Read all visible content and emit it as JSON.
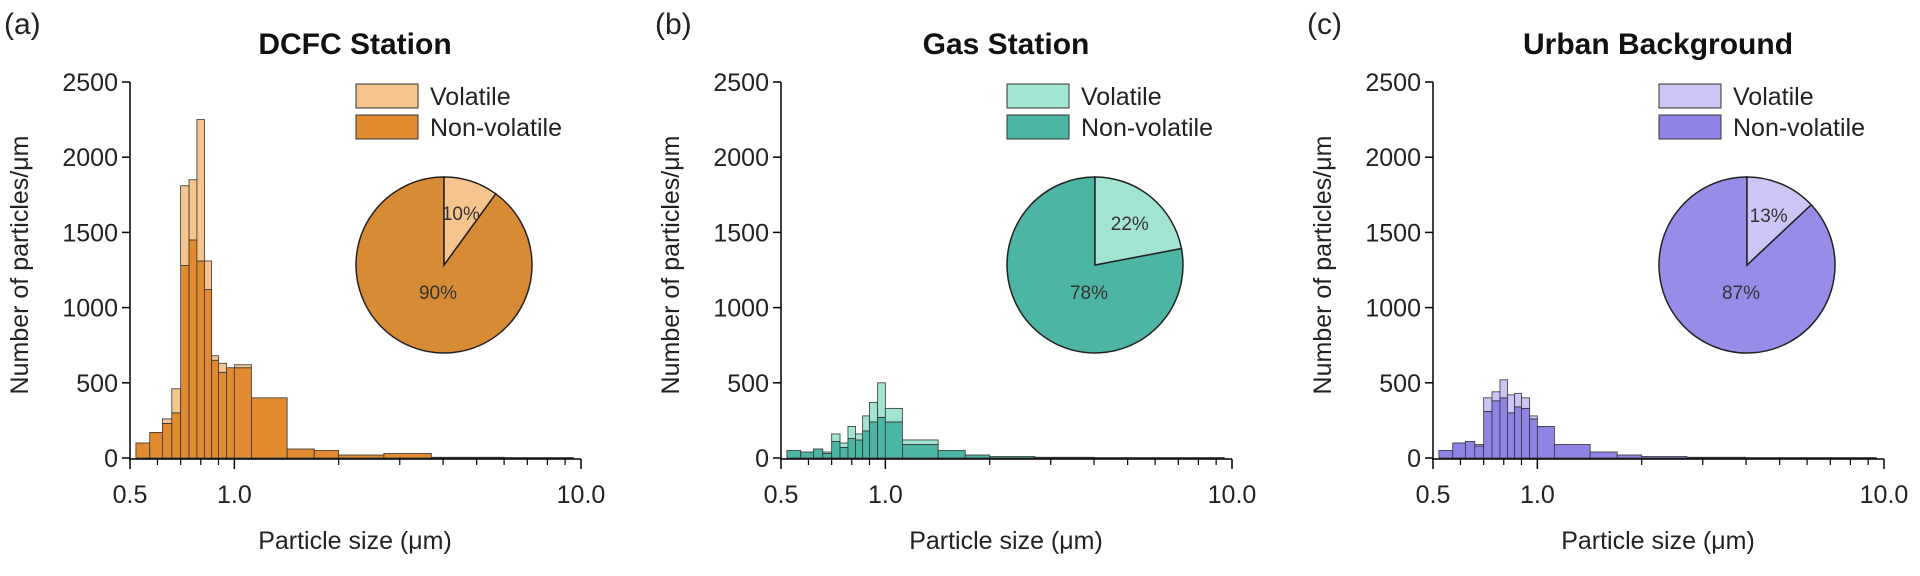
{
  "chart_data": [
    {
      "type": "bar",
      "panel_label": "(a)",
      "title": "DCFC Station",
      "xlabel": "Particle size (μm)",
      "ylabel": "Number of particles/μm",
      "x_scale": "log",
      "xlim": [
        0.5,
        10.0
      ],
      "ylim": [
        0,
        2500
      ],
      "x_ticks": [
        "0.5",
        "1.0",
        "10.0"
      ],
      "y_ticks": [
        "0",
        "500",
        "1000",
        "1500",
        "2000",
        "2500"
      ],
      "legend": {
        "placement": "top-right",
        "entries": [
          "Volatile",
          "Non-volatile"
        ]
      },
      "colors": {
        "volatile": "#F6C48F",
        "non_volatile": "#E28A30",
        "pie_non_volatile": "#D68B34"
      },
      "bins": [
        {
          "x0": 0.52,
          "x1": 0.57,
          "volatile": 0,
          "non_volatile": 100
        },
        {
          "x0": 0.57,
          "x1": 0.62,
          "volatile": 0,
          "non_volatile": 170
        },
        {
          "x0": 0.62,
          "x1": 0.66,
          "volatile": 30,
          "non_volatile": 230
        },
        {
          "x0": 0.66,
          "x1": 0.7,
          "volatile": 160,
          "non_volatile": 300
        },
        {
          "x0": 0.7,
          "x1": 0.74,
          "volatile": 530,
          "non_volatile": 1280
        },
        {
          "x0": 0.74,
          "x1": 0.78,
          "volatile": 400,
          "non_volatile": 1450
        },
        {
          "x0": 0.78,
          "x1": 0.82,
          "volatile": 940,
          "non_volatile": 1310
        },
        {
          "x0": 0.82,
          "x1": 0.86,
          "volatile": 190,
          "non_volatile": 1120
        },
        {
          "x0": 0.86,
          "x1": 0.9,
          "volatile": 30,
          "non_volatile": 650
        },
        {
          "x0": 0.9,
          "x1": 0.95,
          "volatile": 60,
          "non_volatile": 570
        },
        {
          "x0": 0.95,
          "x1": 1.0,
          "volatile": 0,
          "non_volatile": 600
        },
        {
          "x0": 1.0,
          "x1": 1.12,
          "volatile": 20,
          "non_volatile": 600
        },
        {
          "x0": 1.12,
          "x1": 1.42,
          "volatile": 0,
          "non_volatile": 400
        },
        {
          "x0": 1.42,
          "x1": 1.7,
          "volatile": 0,
          "non_volatile": 60
        },
        {
          "x0": 1.7,
          "x1": 2.0,
          "volatile": 0,
          "non_volatile": 50
        },
        {
          "x0": 2.0,
          "x1": 2.7,
          "volatile": 0,
          "non_volatile": 20
        },
        {
          "x0": 2.7,
          "x1": 3.7,
          "volatile": 0,
          "non_volatile": 30
        },
        {
          "x0": 3.7,
          "x1": 6.0,
          "volatile": 0,
          "non_volatile": 5
        },
        {
          "x0": 6.0,
          "x1": 9.5,
          "volatile": 0,
          "non_volatile": 3
        }
      ],
      "pie": {
        "volatile_pct": 10,
        "non_volatile_pct": 90,
        "volatile_label": "10%",
        "non_volatile_label": "90%"
      }
    },
    {
      "type": "bar",
      "panel_label": "(b)",
      "title": "Gas Station",
      "xlabel": "Particle size (μm)",
      "ylabel": "Number of particles/μm",
      "x_scale": "log",
      "xlim": [
        0.5,
        10.0
      ],
      "ylim": [
        0,
        2500
      ],
      "x_ticks": [
        "0.5",
        "1.0",
        "10.0"
      ],
      "y_ticks": [
        "0",
        "500",
        "1000",
        "1500",
        "2000",
        "2500"
      ],
      "legend": {
        "placement": "top-right",
        "entries": [
          "Volatile",
          "Non-volatile"
        ]
      },
      "colors": {
        "volatile": "#A3E3D2",
        "non_volatile": "#4DB5A3",
        "pie_non_volatile": "#4DB5A3"
      },
      "bins": [
        {
          "x0": 0.52,
          "x1": 0.57,
          "volatile": 0,
          "non_volatile": 50
        },
        {
          "x0": 0.57,
          "x1": 0.62,
          "volatile": 0,
          "non_volatile": 40
        },
        {
          "x0": 0.62,
          "x1": 0.66,
          "volatile": 0,
          "non_volatile": 60
        },
        {
          "x0": 0.66,
          "x1": 0.7,
          "volatile": 10,
          "non_volatile": 30
        },
        {
          "x0": 0.7,
          "x1": 0.74,
          "volatile": 50,
          "non_volatile": 110
        },
        {
          "x0": 0.74,
          "x1": 0.78,
          "volatile": 30,
          "non_volatile": 70
        },
        {
          "x0": 0.78,
          "x1": 0.82,
          "volatile": 80,
          "non_volatile": 130
        },
        {
          "x0": 0.82,
          "x1": 0.86,
          "volatile": 40,
          "non_volatile": 120
        },
        {
          "x0": 0.86,
          "x1": 0.9,
          "volatile": 100,
          "non_volatile": 180
        },
        {
          "x0": 0.9,
          "x1": 0.95,
          "volatile": 130,
          "non_volatile": 240
        },
        {
          "x0": 0.95,
          "x1": 1.0,
          "volatile": 230,
          "non_volatile": 270
        },
        {
          "x0": 1.0,
          "x1": 1.12,
          "volatile": 90,
          "non_volatile": 240
        },
        {
          "x0": 1.12,
          "x1": 1.42,
          "volatile": 30,
          "non_volatile": 90
        },
        {
          "x0": 1.42,
          "x1": 1.7,
          "volatile": 0,
          "non_volatile": 50
        },
        {
          "x0": 1.7,
          "x1": 2.0,
          "volatile": 0,
          "non_volatile": 20
        },
        {
          "x0": 2.0,
          "x1": 2.7,
          "volatile": 0,
          "non_volatile": 10
        },
        {
          "x0": 2.7,
          "x1": 4.0,
          "volatile": 0,
          "non_volatile": 5
        },
        {
          "x0": 4.0,
          "x1": 9.5,
          "volatile": 0,
          "non_volatile": 3
        }
      ],
      "pie": {
        "volatile_pct": 22,
        "non_volatile_pct": 78,
        "volatile_label": "22%",
        "non_volatile_label": "78%"
      }
    },
    {
      "type": "bar",
      "panel_label": "(c)",
      "title": "Urban Background",
      "xlabel": "Particle size (μm)",
      "ylabel": "Number of particles/μm",
      "x_scale": "log",
      "xlim": [
        0.5,
        10.0
      ],
      "ylim": [
        0,
        2500
      ],
      "x_ticks": [
        "0.5",
        "1.0",
        "10.0"
      ],
      "y_ticks": [
        "0",
        "500",
        "1000",
        "1500",
        "2000",
        "2500"
      ],
      "legend": {
        "placement": "top-right",
        "entries": [
          "Volatile",
          "Non-volatile"
        ]
      },
      "colors": {
        "volatile": "#CBC6F6",
        "non_volatile": "#8F84E6",
        "pie_non_volatile": "#978CE8"
      },
      "bins": [
        {
          "x0": 0.52,
          "x1": 0.57,
          "volatile": 0,
          "non_volatile": 50
        },
        {
          "x0": 0.57,
          "x1": 0.62,
          "volatile": 0,
          "non_volatile": 100
        },
        {
          "x0": 0.62,
          "x1": 0.66,
          "volatile": 0,
          "non_volatile": 110
        },
        {
          "x0": 0.66,
          "x1": 0.7,
          "volatile": 10,
          "non_volatile": 80
        },
        {
          "x0": 0.7,
          "x1": 0.74,
          "volatile": 90,
          "non_volatile": 310
        },
        {
          "x0": 0.74,
          "x1": 0.78,
          "volatile": 60,
          "non_volatile": 380
        },
        {
          "x0": 0.78,
          "x1": 0.82,
          "volatile": 120,
          "non_volatile": 400
        },
        {
          "x0": 0.82,
          "x1": 0.86,
          "volatile": 120,
          "non_volatile": 300
        },
        {
          "x0": 0.86,
          "x1": 0.9,
          "volatile": 90,
          "non_volatile": 340
        },
        {
          "x0": 0.9,
          "x1": 0.95,
          "volatile": 70,
          "non_volatile": 330
        },
        {
          "x0": 0.95,
          "x1": 1.0,
          "volatile": 20,
          "non_volatile": 260
        },
        {
          "x0": 1.0,
          "x1": 1.12,
          "volatile": 0,
          "non_volatile": 210
        },
        {
          "x0": 1.12,
          "x1": 1.42,
          "volatile": 0,
          "non_volatile": 90
        },
        {
          "x0": 1.42,
          "x1": 1.7,
          "volatile": 0,
          "non_volatile": 40
        },
        {
          "x0": 1.7,
          "x1": 2.0,
          "volatile": 0,
          "non_volatile": 20
        },
        {
          "x0": 2.0,
          "x1": 2.7,
          "volatile": 0,
          "non_volatile": 10
        },
        {
          "x0": 2.7,
          "x1": 4.0,
          "volatile": 0,
          "non_volatile": 5
        },
        {
          "x0": 4.0,
          "x1": 9.5,
          "volatile": 0,
          "non_volatile": 3
        }
      ],
      "pie": {
        "volatile_pct": 13,
        "non_volatile_pct": 87,
        "volatile_label": "13%",
        "non_volatile_label": "87%"
      }
    }
  ]
}
